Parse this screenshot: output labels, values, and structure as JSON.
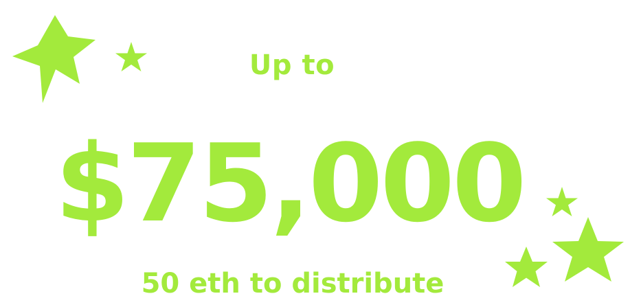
{
  "headline": {
    "prefix": "Up to",
    "amount": "$75,000",
    "subtitle": "50 eth to distribute"
  },
  "colors": {
    "accent": "#A3EA3C",
    "background": "#FFFFFF"
  },
  "decorations": {
    "icons": [
      "star-icon"
    ]
  }
}
